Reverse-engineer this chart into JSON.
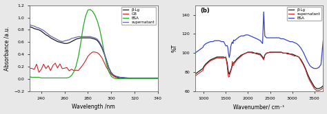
{
  "left_panel": {
    "xlabel": "Wavelength /nm",
    "ylabel": "Absorbance /a.u.",
    "xlim": [
      230,
      340
    ],
    "ylim": [
      -0.2,
      1.2
    ],
    "xticks": [
      240,
      260,
      280,
      300,
      320,
      340
    ],
    "yticks": [
      -0.2,
      0.0,
      0.2,
      0.4,
      0.6,
      0.8,
      1.0,
      1.2
    ],
    "legend": [
      {
        "label": "β-Lg",
        "color": "#1a1a1a"
      },
      {
        "label": "GB",
        "color": "#cc2222"
      },
      {
        "label": "BSA",
        "color": "#22aa22"
      },
      {
        "label": "supernatant",
        "color": "#6666bb"
      }
    ],
    "bg_color": "#ffffff"
  },
  "right_panel": {
    "title": "(b)",
    "xlabel": "Wavenumber/ cm⁻¹",
    "ylabel": "%T",
    "xlim": [
      800,
      3700
    ],
    "ylim": [
      60,
      150
    ],
    "xticks": [
      1000,
      1500,
      2000,
      2500,
      3000,
      3500
    ],
    "yticks": [
      60,
      80,
      100,
      120,
      140
    ],
    "legend": [
      {
        "label": "β-Lg",
        "color": "#1a1a1a"
      },
      {
        "label": "supernatant",
        "color": "#cc2222"
      },
      {
        "label": "BSA",
        "color": "#3344cc"
      }
    ],
    "bg_color": "#ffffff"
  },
  "fig_bg": "#e8e8e8"
}
